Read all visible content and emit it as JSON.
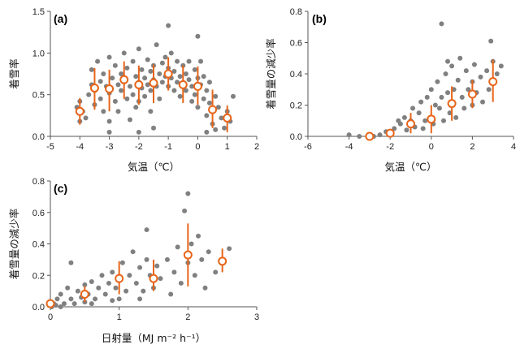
{
  "chart_data": [
    {
      "panel": "(a)",
      "type": "scatter",
      "xlabel": "気温（℃）",
      "ylabel": "着雪率",
      "xlim": [
        -5,
        2
      ],
      "ylim": [
        0,
        1.5
      ],
      "xticks": [
        "-5",
        "-4",
        "-3",
        "-2",
        "-1",
        "0",
        "1",
        "2"
      ],
      "yticks": [
        "0.0",
        "0.5",
        "1.0",
        "1.5"
      ],
      "grid": false,
      "colors": {
        "points": "#808080",
        "means": "#e8651a"
      },
      "points": [
        [
          -4.1,
          0.35
        ],
        [
          -4.0,
          0.42
        ],
        [
          -4.0,
          0.18
        ],
        [
          -3.9,
          0.3
        ],
        [
          -3.8,
          0.22
        ],
        [
          -3.7,
          0.5
        ],
        [
          -3.6,
          0.62
        ],
        [
          -3.6,
          0.8
        ],
        [
          -3.5,
          0.55
        ],
        [
          -3.5,
          0.38
        ],
        [
          -3.4,
          0.9
        ],
        [
          -3.3,
          0.66
        ],
        [
          -3.3,
          0.45
        ],
        [
          -3.2,
          0.75
        ],
        [
          -3.2,
          0.3
        ],
        [
          -3.1,
          0.6
        ],
        [
          -3.0,
          0.95
        ],
        [
          -3.0,
          0.52
        ],
        [
          -3.0,
          0.18
        ],
        [
          -2.9,
          0.7
        ],
        [
          -2.8,
          0.42
        ],
        [
          -2.8,
          0.85
        ],
        [
          -2.7,
          0.62
        ],
        [
          -2.7,
          0.3
        ],
        [
          -2.6,
          0.75
        ],
        [
          -2.6,
          0.55
        ],
        [
          -2.5,
          1.0
        ],
        [
          -2.5,
          0.68
        ],
        [
          -2.4,
          0.45
        ],
        [
          -2.4,
          0.82
        ],
        [
          -2.3,
          0.6
        ],
        [
          -2.3,
          0.2
        ],
        [
          -2.2,
          0.9
        ],
        [
          -2.2,
          0.5
        ],
        [
          -2.1,
          0.72
        ],
        [
          -2.1,
          0.35
        ],
        [
          -2.0,
          0.65
        ],
        [
          -2.0,
          1.05
        ],
        [
          -2.0,
          0.42
        ],
        [
          -1.9,
          0.58
        ],
        [
          -1.9,
          0.8
        ],
        [
          -1.8,
          0.48
        ],
        [
          -1.8,
          0.7
        ],
        [
          -1.7,
          0.62
        ],
        [
          -1.7,
          0.92
        ],
        [
          -1.6,
          0.55
        ],
        [
          -1.6,
          0.78
        ],
        [
          -1.6,
          0.3
        ],
        [
          -1.5,
          0.68
        ],
        [
          -1.5,
          0.85
        ],
        [
          -1.4,
          1.1
        ],
        [
          -1.4,
          0.6
        ],
        [
          -1.3,
          0.75
        ],
        [
          -1.3,
          0.45
        ],
        [
          -1.2,
          0.88
        ],
        [
          -1.2,
          0.65
        ],
        [
          -1.1,
          0.95
        ],
        [
          -1.1,
          0.72
        ],
        [
          -1.0,
          1.33
        ],
        [
          -1.0,
          0.82
        ],
        [
          -1.0,
          0.6
        ],
        [
          -0.9,
          0.7
        ],
        [
          -0.9,
          1.0
        ],
        [
          -0.8,
          0.55
        ],
        [
          -0.8,
          0.78
        ],
        [
          -0.7,
          0.9
        ],
        [
          -0.7,
          0.65
        ],
        [
          -0.6,
          0.72
        ],
        [
          -0.6,
          0.48
        ],
        [
          -0.5,
          0.85
        ],
        [
          -0.5,
          0.62
        ],
        [
          -0.4,
          0.75
        ],
        [
          -0.4,
          0.55
        ],
        [
          -0.3,
          0.68
        ],
        [
          -0.3,
          0.9
        ],
        [
          -0.2,
          0.6
        ],
        [
          -0.2,
          0.42
        ],
        [
          -0.1,
          0.8
        ],
        [
          -0.1,
          0.5
        ],
        [
          0.0,
          1.2
        ],
        [
          0.0,
          0.7
        ],
        [
          0.0,
          0.35
        ],
        [
          0.1,
          0.62
        ],
        [
          0.1,
          0.9
        ],
        [
          0.2,
          0.45
        ],
        [
          0.2,
          0.72
        ],
        [
          0.3,
          0.55
        ],
        [
          0.3,
          0.25
        ],
        [
          0.4,
          0.4
        ],
        [
          0.4,
          0.65
        ],
        [
          0.5,
          0.3
        ],
        [
          0.5,
          0.15
        ],
        [
          0.6,
          0.48
        ],
        [
          0.6,
          0.08
        ],
        [
          0.7,
          0.35
        ],
        [
          0.8,
          0.22
        ],
        [
          0.9,
          0.1
        ],
        [
          1.0,
          0.3
        ],
        [
          1.1,
          0.18
        ],
        [
          1.2,
          0.48
        ],
        [
          -3.0,
          0.05
        ],
        [
          -2.0,
          0.05
        ],
        [
          -1.5,
          0.1
        ],
        [
          0.3,
          0.05
        ]
      ],
      "means": [
        {
          "x": -4.0,
          "y": 0.3,
          "lo": 0.14,
          "hi": 0.46
        },
        {
          "x": -3.5,
          "y": 0.58,
          "lo": 0.32,
          "hi": 0.82
        },
        {
          "x": -3.0,
          "y": 0.57,
          "lo": 0.3,
          "hi": 0.8
        },
        {
          "x": -2.5,
          "y": 0.68,
          "lo": 0.45,
          "hi": 0.9
        },
        {
          "x": -2.0,
          "y": 0.62,
          "lo": 0.38,
          "hi": 0.85
        },
        {
          "x": -1.5,
          "y": 0.64,
          "lo": 0.4,
          "hi": 0.86
        },
        {
          "x": -1.0,
          "y": 0.75,
          "lo": 0.55,
          "hi": 0.95
        },
        {
          "x": -0.5,
          "y": 0.62,
          "lo": 0.4,
          "hi": 0.85
        },
        {
          "x": 0.0,
          "y": 0.6,
          "lo": 0.38,
          "hi": 0.84
        },
        {
          "x": 0.5,
          "y": 0.32,
          "lo": 0.1,
          "hi": 0.56
        },
        {
          "x": 1.0,
          "y": 0.22,
          "lo": 0.05,
          "hi": 0.37
        }
      ]
    },
    {
      "panel": "(b)",
      "type": "scatter",
      "xlabel": "気温（℃）",
      "ylabel": "着雪量の減少率",
      "xlim": [
        -6,
        4
      ],
      "ylim": [
        0,
        0.8
      ],
      "xticks": [
        "-6",
        "-4",
        "-2",
        "0",
        "2",
        "4"
      ],
      "yticks": [
        "0.0",
        "0.2",
        "0.4",
        "0.6",
        "0.8"
      ],
      "grid": false,
      "colors": {
        "points": "#808080",
        "means": "#e8651a"
      },
      "points": [
        [
          -4.0,
          0.01
        ],
        [
          -3.5,
          0.0
        ],
        [
          -3.0,
          0.01
        ],
        [
          -2.8,
          0.0
        ],
        [
          -2.5,
          0.01
        ],
        [
          -2.2,
          0.03
        ],
        [
          -2.0,
          0.02
        ],
        [
          -1.8,
          0.05
        ],
        [
          -1.5,
          0.08
        ],
        [
          -1.3,
          0.12
        ],
        [
          -1.2,
          0.04
        ],
        [
          -1.0,
          0.1
        ],
        [
          -0.9,
          0.18
        ],
        [
          -0.8,
          0.06
        ],
        [
          -0.6,
          0.15
        ],
        [
          -0.5,
          0.22
        ],
        [
          -0.3,
          0.1
        ],
        [
          -0.2,
          0.25
        ],
        [
          0.0,
          0.3
        ],
        [
          0.0,
          0.12
        ],
        [
          0.1,
          0.08
        ],
        [
          0.2,
          0.2
        ],
        [
          0.3,
          0.35
        ],
        [
          0.4,
          0.18
        ],
        [
          0.5,
          0.72
        ],
        [
          0.5,
          0.25
        ],
        [
          0.6,
          0.1
        ],
        [
          0.7,
          0.4
        ],
        [
          0.8,
          0.28
        ],
        [
          0.9,
          0.15
        ],
        [
          1.0,
          0.45
        ],
        [
          1.0,
          0.22
        ],
        [
          1.1,
          0.3
        ],
        [
          1.2,
          0.12
        ],
        [
          1.3,
          0.36
        ],
        [
          1.4,
          0.5
        ],
        [
          1.5,
          0.25
        ],
        [
          1.6,
          0.18
        ],
        [
          1.7,
          0.42
        ],
        [
          1.8,
          0.3
        ],
        [
          2.0,
          0.35
        ],
        [
          2.0,
          0.2
        ],
        [
          2.1,
          0.46
        ],
        [
          2.2,
          0.28
        ],
        [
          2.4,
          0.38
        ],
        [
          2.5,
          0.22
        ],
        [
          2.7,
          0.42
        ],
        [
          2.8,
          0.3
        ],
        [
          2.9,
          0.61
        ],
        [
          3.0,
          0.48
        ],
        [
          3.2,
          0.4
        ],
        [
          3.4,
          0.45
        ],
        [
          -1.6,
          0.1
        ],
        [
          -0.4,
          0.05
        ],
        [
          0.8,
          0.48
        ]
      ],
      "means": [
        {
          "x": -3.0,
          "y": 0.0,
          "lo": 0.0,
          "hi": 0.01
        },
        {
          "x": -2.0,
          "y": 0.02,
          "lo": 0.0,
          "hi": 0.04
        },
        {
          "x": -1.0,
          "y": 0.08,
          "lo": 0.02,
          "hi": 0.15
        },
        {
          "x": 0.0,
          "y": 0.11,
          "lo": 0.02,
          "hi": 0.2
        },
        {
          "x": 1.0,
          "y": 0.21,
          "lo": 0.1,
          "hi": 0.32
        },
        {
          "x": 2.0,
          "y": 0.27,
          "lo": 0.18,
          "hi": 0.36
        },
        {
          "x": 3.0,
          "y": 0.35,
          "lo": 0.22,
          "hi": 0.49
        }
      ]
    },
    {
      "panel": "(c)",
      "type": "scatter",
      "xlabel": "日射量（MJ m⁻² h⁻¹）",
      "ylabel": "着雪量の減少率",
      "xlim": [
        0,
        3
      ],
      "ylim": [
        0,
        0.8
      ],
      "xticks": [
        "0",
        "1",
        "2",
        "3"
      ],
      "yticks": [
        "0.0",
        "0.2",
        "0.4",
        "0.6",
        "0.8"
      ],
      "grid": false,
      "colors": {
        "points": "#808080",
        "means": "#e8651a"
      },
      "points": [
        [
          0.02,
          0.0
        ],
        [
          0.05,
          0.02
        ],
        [
          0.08,
          0.01
        ],
        [
          0.1,
          0.05
        ],
        [
          0.15,
          0.0
        ],
        [
          0.2,
          0.02
        ],
        [
          0.25,
          0.12
        ],
        [
          0.3,
          0.05
        ],
        [
          0.3,
          0.28
        ],
        [
          0.35,
          0.02
        ],
        [
          0.4,
          0.1
        ],
        [
          0.45,
          0.06
        ],
        [
          0.5,
          0.14
        ],
        [
          0.5,
          0.03
        ],
        [
          0.55,
          0.08
        ],
        [
          0.6,
          0.16
        ],
        [
          0.65,
          0.05
        ],
        [
          0.7,
          0.12
        ],
        [
          0.75,
          0.2
        ],
        [
          0.8,
          0.08
        ],
        [
          0.85,
          0.15
        ],
        [
          0.9,
          0.04
        ],
        [
          0.9,
          0.22
        ],
        [
          0.95,
          0.12
        ],
        [
          1.0,
          0.18
        ],
        [
          1.0,
          0.05
        ],
        [
          1.05,
          0.28
        ],
        [
          1.1,
          0.1
        ],
        [
          1.15,
          0.2
        ],
        [
          1.2,
          0.35
        ],
        [
          1.25,
          0.15
        ],
        [
          1.3,
          0.25
        ],
        [
          1.35,
          0.1
        ],
        [
          1.4,
          0.3
        ],
        [
          1.4,
          0.49
        ],
        [
          1.45,
          0.2
        ],
        [
          1.5,
          0.12
        ],
        [
          1.55,
          0.26
        ],
        [
          1.6,
          0.18
        ],
        [
          1.7,
          0.3
        ],
        [
          1.75,
          0.08
        ],
        [
          1.8,
          0.22
        ],
        [
          1.85,
          0.38
        ],
        [
          1.9,
          0.15
        ],
        [
          1.95,
          0.61
        ],
        [
          2.0,
          0.72
        ],
        [
          2.0,
          0.28
        ],
        [
          2.05,
          0.4
        ],
        [
          2.1,
          0.2
        ],
        [
          2.15,
          0.45
        ],
        [
          2.2,
          0.3
        ],
        [
          2.3,
          0.35
        ],
        [
          2.4,
          0.22
        ],
        [
          2.5,
          0.3
        ],
        [
          2.6,
          0.37
        ],
        [
          0.15,
          0.08
        ],
        [
          0.6,
          0.02
        ],
        [
          1.3,
          0.05
        ],
        [
          2.25,
          0.12
        ]
      ],
      "means": [
        {
          "x": 0.0,
          "y": 0.02,
          "lo": 0.0,
          "hi": 0.04
        },
        {
          "x": 0.5,
          "y": 0.08,
          "lo": 0.03,
          "hi": 0.13
        },
        {
          "x": 1.0,
          "y": 0.18,
          "lo": 0.08,
          "hi": 0.29
        },
        {
          "x": 1.5,
          "y": 0.18,
          "lo": 0.1,
          "hi": 0.3
        },
        {
          "x": 2.0,
          "y": 0.33,
          "lo": 0.13,
          "hi": 0.53
        },
        {
          "x": 2.5,
          "y": 0.29,
          "lo": 0.22,
          "hi": 0.37
        }
      ]
    }
  ]
}
